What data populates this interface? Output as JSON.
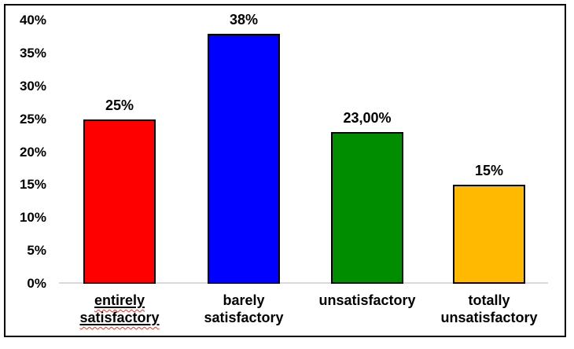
{
  "chart_data": {
    "type": "bar",
    "title": "",
    "xlabel": "",
    "ylabel": "",
    "categories": [
      "entirely satisfactory",
      "barely satisfactory",
      "unsatisfactory",
      "totally unsatisfactory"
    ],
    "category_label_lines": [
      [
        "entirely",
        "satisfactory"
      ],
      [
        "barely",
        "satisfactory"
      ],
      [
        "unsatisfactory"
      ],
      [
        "totally",
        "unsatisfactory"
      ]
    ],
    "category_label_styles": [
      {
        "underline": true,
        "spellcheck_squiggle": true
      },
      {
        "underline": false,
        "spellcheck_squiggle": false
      },
      {
        "underline": false,
        "spellcheck_squiggle": false
      },
      {
        "underline": false,
        "spellcheck_squiggle": false
      }
    ],
    "values": [
      25,
      38,
      23,
      15
    ],
    "value_labels": [
      "25%",
      "38%",
      "23,00%",
      "15%"
    ],
    "bar_colors": [
      "#ff0000",
      "#0000ff",
      "#008e00",
      "#ffb900"
    ],
    "y_axis": {
      "min": 0,
      "max": 40,
      "step": 5,
      "tick_labels": [
        "0%",
        "5%",
        "10%",
        "15%",
        "20%",
        "25%",
        "30%",
        "35%",
        "40%"
      ]
    },
    "ylim": [
      0,
      40
    ],
    "grid": false,
    "legend_position": null
  },
  "colors": {
    "frame_border": "#000000",
    "axis_line": "#d9d9d9",
    "text": "#000000",
    "spellcheck_squiggle": "#e8392e",
    "background": "#ffffff"
  }
}
